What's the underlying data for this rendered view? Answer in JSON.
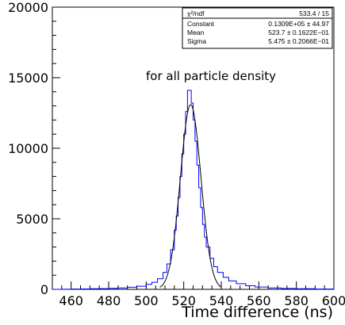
{
  "chart_data": {
    "type": "histogram",
    "xlabel": "Time difference (ns)",
    "ylabel": "",
    "xlim": [
      450,
      600
    ],
    "ylim": [
      0,
      20000
    ],
    "x_ticks": [
      460,
      480,
      500,
      520,
      540,
      560,
      580,
      600
    ],
    "y_ticks": [
      0,
      5000,
      10000,
      15000,
      20000
    ],
    "annotation": "for all particle density",
    "histogram_color": "#0000ff",
    "fit_color": "#000000",
    "fit": {
      "function": "gaussian",
      "constant": 13090,
      "mean": 523.7,
      "sigma": 5.475
    },
    "stats_box": {
      "rows": [
        {
          "label": "χ²/ndf",
          "value": "533.4   /   15"
        },
        {
          "label": "Constant",
          "value": "0.1309E+05 ±       44.97"
        },
        {
          "label": "Mean",
          "value": "523.7 ±  0.1622E−01"
        },
        {
          "label": "Sigma",
          "value": "5.475 ±  0.2066E−01"
        }
      ]
    },
    "bins": [
      {
        "x": 450,
        "y": 0
      },
      {
        "x": 455,
        "y": 10
      },
      {
        "x": 460,
        "y": 20
      },
      {
        "x": 465,
        "y": 30
      },
      {
        "x": 470,
        "y": 40
      },
      {
        "x": 475,
        "y": 50
      },
      {
        "x": 480,
        "y": 70
      },
      {
        "x": 485,
        "y": 100
      },
      {
        "x": 490,
        "y": 150
      },
      {
        "x": 495,
        "y": 220
      },
      {
        "x": 500,
        "y": 350
      },
      {
        "x": 503,
        "y": 500
      },
      {
        "x": 506,
        "y": 750
      },
      {
        "x": 509,
        "y": 1200
      },
      {
        "x": 511,
        "y": 1800
      },
      {
        "x": 513,
        "y": 2800
      },
      {
        "x": 515,
        "y": 4200
      },
      {
        "x": 516,
        "y": 5200
      },
      {
        "x": 517,
        "y": 6500
      },
      {
        "x": 518,
        "y": 8000
      },
      {
        "x": 519,
        "y": 9600
      },
      {
        "x": 520,
        "y": 11000
      },
      {
        "x": 521,
        "y": 12600
      },
      {
        "x": 522,
        "y": 14100
      },
      {
        "x": 523,
        "y": 14100
      },
      {
        "x": 524,
        "y": 13200
      },
      {
        "x": 525,
        "y": 12000
      },
      {
        "x": 526,
        "y": 10500
      },
      {
        "x": 527,
        "y": 8800
      },
      {
        "x": 528,
        "y": 7200
      },
      {
        "x": 529,
        "y": 5800
      },
      {
        "x": 530,
        "y": 4600
      },
      {
        "x": 531,
        "y": 3700
      },
      {
        "x": 532,
        "y": 3000
      },
      {
        "x": 534,
        "y": 2200
      },
      {
        "x": 536,
        "y": 1600
      },
      {
        "x": 538,
        "y": 1200
      },
      {
        "x": 541,
        "y": 850
      },
      {
        "x": 544,
        "y": 600
      },
      {
        "x": 548,
        "y": 400
      },
      {
        "x": 553,
        "y": 250
      },
      {
        "x": 558,
        "y": 160
      },
      {
        "x": 565,
        "y": 100
      },
      {
        "x": 572,
        "y": 60
      },
      {
        "x": 580,
        "y": 40
      },
      {
        "x": 590,
        "y": 20
      },
      {
        "x": 600,
        "y": 0
      }
    ]
  }
}
